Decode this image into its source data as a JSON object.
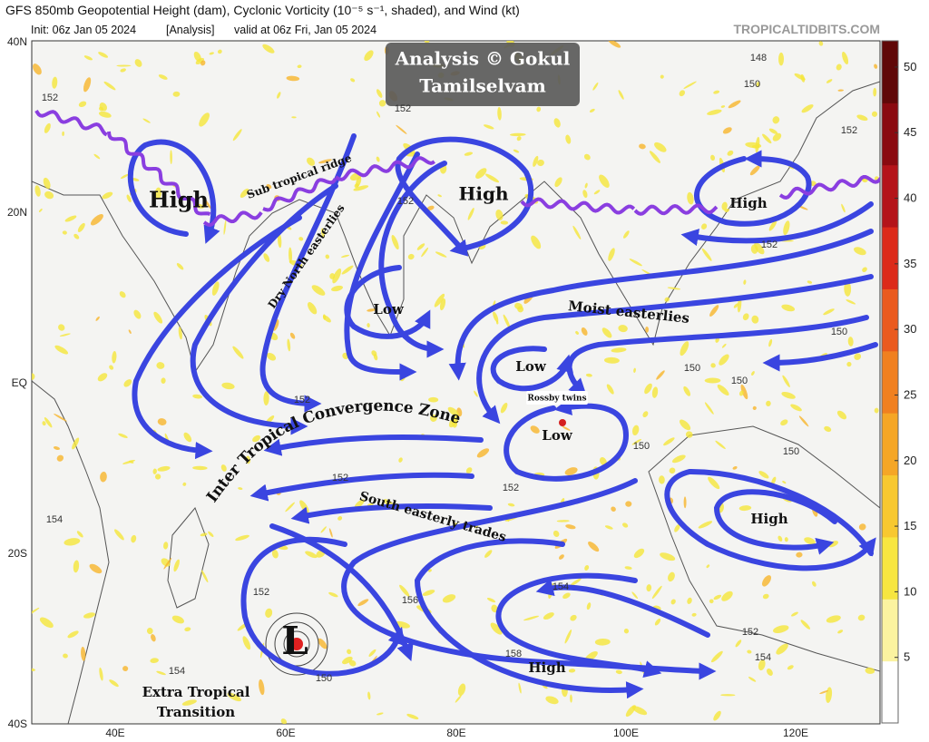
{
  "header": {
    "title": "GFS 850mb Geopotential Height (dam), Cyclonic Vorticity (10⁻⁵ s⁻¹, shaded), and Wind (kt)",
    "init": "Init: 06z Jan 05 2024",
    "analysis": "[Analysis]",
    "valid": "valid at 06z Fri, Jan 05 2024",
    "source": "TROPICALTIDBITS.COM"
  },
  "watermark": [
    "Analysis © Gokul",
    "Tamilselvam"
  ],
  "map": {
    "lat_labels": [
      "40N",
      "20N",
      "EQ",
      "20S",
      "40S"
    ],
    "lon_labels": [
      "40E",
      "60E",
      "80E",
      "100E",
      "120E"
    ]
  },
  "colorbar": {
    "lim": [
      0,
      52
    ],
    "ticks": [
      5,
      10,
      15,
      20,
      25,
      30,
      35,
      40,
      45,
      50
    ]
  },
  "annotations": [
    "High",
    "Sub tropical ridge",
    "Dry North easterlies",
    "High",
    "High",
    "Low",
    "Moist easterlies",
    "Low",
    "Rossby twins",
    "Low",
    "Inter Tropical Convergence Zone",
    "South easterly trades",
    "High",
    "High",
    "L",
    "Extra Tropical",
    "Transition"
  ],
  "contour_labels": [
    "152",
    "152",
    "148",
    "150",
    "152",
    "152",
    "152",
    "150",
    "150",
    "150",
    "152",
    "150",
    "150",
    "152",
    "152",
    "154",
    "152",
    "156",
    "154",
    "158",
    "152",
    "154",
    "150",
    "154"
  ]
}
